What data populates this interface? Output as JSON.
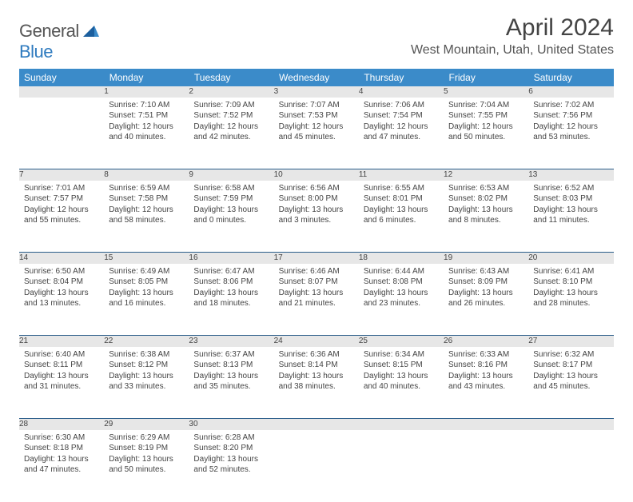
{
  "brand": {
    "part1": "General",
    "part2": "Blue"
  },
  "title": "April 2024",
  "location": "West Mountain, Utah, United States",
  "colors": {
    "header_bg": "#3b8bc9",
    "header_text": "#ffffff",
    "daynum_bg": "#e7e7e7",
    "row_divider": "#2a5d8a",
    "text": "#444444",
    "brand_gray": "#555555",
    "brand_blue": "#2f7bbf",
    "background": "#ffffff"
  },
  "typography": {
    "title_fontsize": 30,
    "location_fontsize": 16,
    "header_fontsize": 12,
    "cell_fontsize": 10,
    "daynum_fontsize": 12
  },
  "weekdays": [
    "Sunday",
    "Monday",
    "Tuesday",
    "Wednesday",
    "Thursday",
    "Friday",
    "Saturday"
  ],
  "weeks": [
    [
      null,
      {
        "d": "1",
        "sr": "Sunrise: 7:10 AM",
        "ss": "Sunset: 7:51 PM",
        "dl1": "Daylight: 12 hours",
        "dl2": "and 40 minutes."
      },
      {
        "d": "2",
        "sr": "Sunrise: 7:09 AM",
        "ss": "Sunset: 7:52 PM",
        "dl1": "Daylight: 12 hours",
        "dl2": "and 42 minutes."
      },
      {
        "d": "3",
        "sr": "Sunrise: 7:07 AM",
        "ss": "Sunset: 7:53 PM",
        "dl1": "Daylight: 12 hours",
        "dl2": "and 45 minutes."
      },
      {
        "d": "4",
        "sr": "Sunrise: 7:06 AM",
        "ss": "Sunset: 7:54 PM",
        "dl1": "Daylight: 12 hours",
        "dl2": "and 47 minutes."
      },
      {
        "d": "5",
        "sr": "Sunrise: 7:04 AM",
        "ss": "Sunset: 7:55 PM",
        "dl1": "Daylight: 12 hours",
        "dl2": "and 50 minutes."
      },
      {
        "d": "6",
        "sr": "Sunrise: 7:02 AM",
        "ss": "Sunset: 7:56 PM",
        "dl1": "Daylight: 12 hours",
        "dl2": "and 53 minutes."
      }
    ],
    [
      {
        "d": "7",
        "sr": "Sunrise: 7:01 AM",
        "ss": "Sunset: 7:57 PM",
        "dl1": "Daylight: 12 hours",
        "dl2": "and 55 minutes."
      },
      {
        "d": "8",
        "sr": "Sunrise: 6:59 AM",
        "ss": "Sunset: 7:58 PM",
        "dl1": "Daylight: 12 hours",
        "dl2": "and 58 minutes."
      },
      {
        "d": "9",
        "sr": "Sunrise: 6:58 AM",
        "ss": "Sunset: 7:59 PM",
        "dl1": "Daylight: 13 hours",
        "dl2": "and 0 minutes."
      },
      {
        "d": "10",
        "sr": "Sunrise: 6:56 AM",
        "ss": "Sunset: 8:00 PM",
        "dl1": "Daylight: 13 hours",
        "dl2": "and 3 minutes."
      },
      {
        "d": "11",
        "sr": "Sunrise: 6:55 AM",
        "ss": "Sunset: 8:01 PM",
        "dl1": "Daylight: 13 hours",
        "dl2": "and 6 minutes."
      },
      {
        "d": "12",
        "sr": "Sunrise: 6:53 AM",
        "ss": "Sunset: 8:02 PM",
        "dl1": "Daylight: 13 hours",
        "dl2": "and 8 minutes."
      },
      {
        "d": "13",
        "sr": "Sunrise: 6:52 AM",
        "ss": "Sunset: 8:03 PM",
        "dl1": "Daylight: 13 hours",
        "dl2": "and 11 minutes."
      }
    ],
    [
      {
        "d": "14",
        "sr": "Sunrise: 6:50 AM",
        "ss": "Sunset: 8:04 PM",
        "dl1": "Daylight: 13 hours",
        "dl2": "and 13 minutes."
      },
      {
        "d": "15",
        "sr": "Sunrise: 6:49 AM",
        "ss": "Sunset: 8:05 PM",
        "dl1": "Daylight: 13 hours",
        "dl2": "and 16 minutes."
      },
      {
        "d": "16",
        "sr": "Sunrise: 6:47 AM",
        "ss": "Sunset: 8:06 PM",
        "dl1": "Daylight: 13 hours",
        "dl2": "and 18 minutes."
      },
      {
        "d": "17",
        "sr": "Sunrise: 6:46 AM",
        "ss": "Sunset: 8:07 PM",
        "dl1": "Daylight: 13 hours",
        "dl2": "and 21 minutes."
      },
      {
        "d": "18",
        "sr": "Sunrise: 6:44 AM",
        "ss": "Sunset: 8:08 PM",
        "dl1": "Daylight: 13 hours",
        "dl2": "and 23 minutes."
      },
      {
        "d": "19",
        "sr": "Sunrise: 6:43 AM",
        "ss": "Sunset: 8:09 PM",
        "dl1": "Daylight: 13 hours",
        "dl2": "and 26 minutes."
      },
      {
        "d": "20",
        "sr": "Sunrise: 6:41 AM",
        "ss": "Sunset: 8:10 PM",
        "dl1": "Daylight: 13 hours",
        "dl2": "and 28 minutes."
      }
    ],
    [
      {
        "d": "21",
        "sr": "Sunrise: 6:40 AM",
        "ss": "Sunset: 8:11 PM",
        "dl1": "Daylight: 13 hours",
        "dl2": "and 31 minutes."
      },
      {
        "d": "22",
        "sr": "Sunrise: 6:38 AM",
        "ss": "Sunset: 8:12 PM",
        "dl1": "Daylight: 13 hours",
        "dl2": "and 33 minutes."
      },
      {
        "d": "23",
        "sr": "Sunrise: 6:37 AM",
        "ss": "Sunset: 8:13 PM",
        "dl1": "Daylight: 13 hours",
        "dl2": "and 35 minutes."
      },
      {
        "d": "24",
        "sr": "Sunrise: 6:36 AM",
        "ss": "Sunset: 8:14 PM",
        "dl1": "Daylight: 13 hours",
        "dl2": "and 38 minutes."
      },
      {
        "d": "25",
        "sr": "Sunrise: 6:34 AM",
        "ss": "Sunset: 8:15 PM",
        "dl1": "Daylight: 13 hours",
        "dl2": "and 40 minutes."
      },
      {
        "d": "26",
        "sr": "Sunrise: 6:33 AM",
        "ss": "Sunset: 8:16 PM",
        "dl1": "Daylight: 13 hours",
        "dl2": "and 43 minutes."
      },
      {
        "d": "27",
        "sr": "Sunrise: 6:32 AM",
        "ss": "Sunset: 8:17 PM",
        "dl1": "Daylight: 13 hours",
        "dl2": "and 45 minutes."
      }
    ],
    [
      {
        "d": "28",
        "sr": "Sunrise: 6:30 AM",
        "ss": "Sunset: 8:18 PM",
        "dl1": "Daylight: 13 hours",
        "dl2": "and 47 minutes."
      },
      {
        "d": "29",
        "sr": "Sunrise: 6:29 AM",
        "ss": "Sunset: 8:19 PM",
        "dl1": "Daylight: 13 hours",
        "dl2": "and 50 minutes."
      },
      {
        "d": "30",
        "sr": "Sunrise: 6:28 AM",
        "ss": "Sunset: 8:20 PM",
        "dl1": "Daylight: 13 hours",
        "dl2": "and 52 minutes."
      },
      null,
      null,
      null,
      null
    ]
  ]
}
